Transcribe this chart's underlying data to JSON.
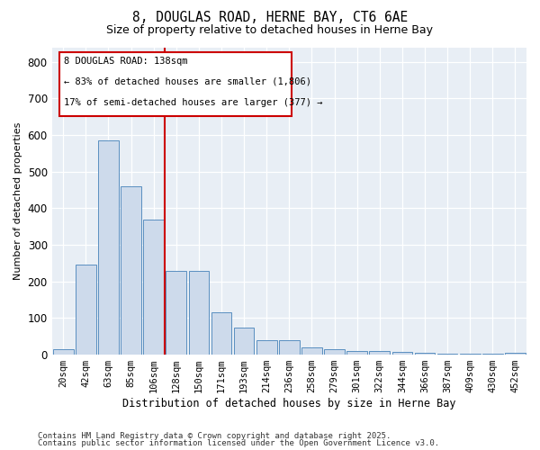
{
  "title": "8, DOUGLAS ROAD, HERNE BAY, CT6 6AE",
  "subtitle": "Size of property relative to detached houses in Herne Bay",
  "xlabel": "Distribution of detached houses by size in Herne Bay",
  "ylabel": "Number of detached properties",
  "bar_color": "#cddaeb",
  "bar_edge_color": "#5a8fc0",
  "background_color": "#e8eef5",
  "grid_color": "#c8d0da",
  "annotation_line_color": "#cc0000",
  "annotation_box_color": "#cc0000",
  "categories": [
    "20sqm",
    "42sqm",
    "63sqm",
    "85sqm",
    "106sqm",
    "128sqm",
    "150sqm",
    "171sqm",
    "193sqm",
    "214sqm",
    "236sqm",
    "258sqm",
    "279sqm",
    "301sqm",
    "322sqm",
    "344sqm",
    "366sqm",
    "387sqm",
    "409sqm",
    "430sqm",
    "452sqm"
  ],
  "values": [
    15,
    245,
    585,
    460,
    370,
    230,
    230,
    115,
    75,
    40,
    40,
    20,
    15,
    10,
    10,
    7,
    5,
    3,
    3,
    2,
    5
  ],
  "marker_index": 5,
  "marker_label": "8 DOUGLAS ROAD: 138sqm",
  "annotation_line1": "← 83% of detached houses are smaller (1,806)",
  "annotation_line2": "17% of semi-detached houses are larger (377) →",
  "ylim": [
    0,
    840
  ],
  "yticks": [
    0,
    100,
    200,
    300,
    400,
    500,
    600,
    700,
    800
  ],
  "footer_line1": "Contains HM Land Registry data © Crown copyright and database right 2025.",
  "footer_line2": "Contains public sector information licensed under the Open Government Licence v3.0."
}
